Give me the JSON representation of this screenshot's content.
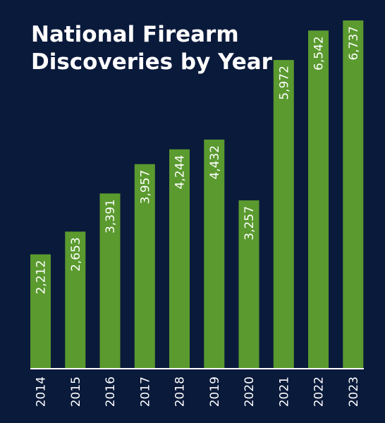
{
  "chart_data": {
    "type": "bar",
    "title_lines": [
      "National Firearm",
      "Discoveries by Year"
    ],
    "categories": [
      "2014",
      "2015",
      "2016",
      "2017",
      "2018",
      "2019",
      "2020",
      "2021",
      "2022",
      "2023"
    ],
    "values": [
      2212,
      2653,
      3391,
      3957,
      4244,
      4432,
      3257,
      5972,
      6542,
      6737
    ],
    "value_labels": [
      "2,212",
      "2,653",
      "3,391",
      "3,957",
      "4,244",
      "4,432",
      "3,257",
      "5,972",
      "6,542",
      "6,737"
    ],
    "ylim": [
      0,
      6737
    ],
    "grid": false,
    "legend": "none",
    "colors": {
      "background": "#0a1a3b",
      "bar": "#5a9a2e",
      "text": "#ffffff",
      "baseline": "#ffffff"
    }
  }
}
